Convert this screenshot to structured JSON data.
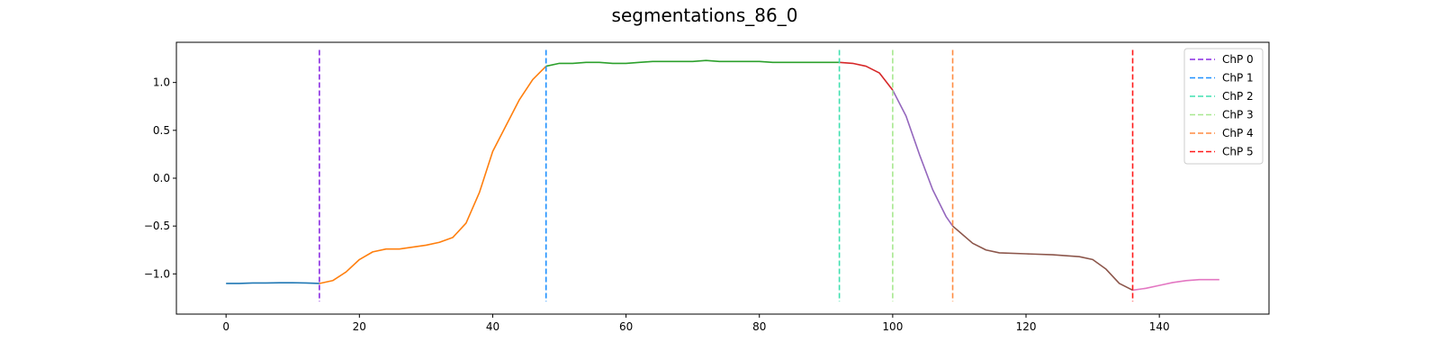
{
  "chart_data": {
    "type": "line",
    "title": "segmentations_86_0",
    "xlabel": "",
    "ylabel": "",
    "xlim": [
      -7.45,
      156.45
    ],
    "ylim": [
      -1.42,
      1.42
    ],
    "x_ticks": [
      0,
      20,
      40,
      60,
      80,
      100,
      120,
      140
    ],
    "y_ticks": [
      -1.0,
      -0.5,
      0.0,
      0.5,
      1.0
    ],
    "y_tick_labels": [
      "−1.0",
      "−0.5",
      "0.0",
      "0.5",
      "1.0"
    ],
    "grid": false,
    "legend_position": "top-right",
    "series": [
      {
        "color": "#1f77b4",
        "points": [
          [
            0,
            -1.1
          ],
          [
            2,
            -1.1
          ],
          [
            4,
            -1.095
          ],
          [
            6,
            -1.095
          ],
          [
            8,
            -1.093
          ],
          [
            10,
            -1.092
          ],
          [
            12,
            -1.095
          ],
          [
            14,
            -1.1
          ]
        ]
      },
      {
        "color": "#ff7f0e",
        "points": [
          [
            14,
            -1.1
          ],
          [
            16,
            -1.07
          ],
          [
            18,
            -0.98
          ],
          [
            20,
            -0.85
          ],
          [
            22,
            -0.77
          ],
          [
            24,
            -0.74
          ],
          [
            26,
            -0.74
          ],
          [
            28,
            -0.72
          ],
          [
            30,
            -0.7
          ],
          [
            32,
            -0.67
          ],
          [
            34,
            -0.62
          ],
          [
            36,
            -0.47
          ],
          [
            38,
            -0.15
          ],
          [
            40,
            0.28
          ],
          [
            42,
            0.55
          ],
          [
            44,
            0.82
          ],
          [
            46,
            1.03
          ],
          [
            48,
            1.17
          ]
        ]
      },
      {
        "color": "#2ca02c",
        "points": [
          [
            48,
            1.17
          ],
          [
            50,
            1.2
          ],
          [
            52,
            1.2
          ],
          [
            54,
            1.21
          ],
          [
            56,
            1.21
          ],
          [
            58,
            1.2
          ],
          [
            60,
            1.2
          ],
          [
            62,
            1.21
          ],
          [
            64,
            1.22
          ],
          [
            66,
            1.22
          ],
          [
            68,
            1.22
          ],
          [
            70,
            1.22
          ],
          [
            72,
            1.23
          ],
          [
            74,
            1.22
          ],
          [
            76,
            1.22
          ],
          [
            78,
            1.22
          ],
          [
            80,
            1.22
          ],
          [
            82,
            1.21
          ],
          [
            84,
            1.21
          ],
          [
            86,
            1.21
          ],
          [
            88,
            1.21
          ],
          [
            90,
            1.21
          ],
          [
            92,
            1.21
          ]
        ]
      },
      {
        "color": "#d62728",
        "points": [
          [
            92,
            1.21
          ],
          [
            94,
            1.2
          ],
          [
            96,
            1.17
          ],
          [
            98,
            1.1
          ],
          [
            100,
            0.92
          ]
        ]
      },
      {
        "color": "#9467bd",
        "points": [
          [
            100,
            0.92
          ],
          [
            102,
            0.65
          ],
          [
            104,
            0.25
          ],
          [
            106,
            -0.12
          ],
          [
            108,
            -0.4
          ],
          [
            109,
            -0.5
          ]
        ]
      },
      {
        "color": "#8c564b",
        "points": [
          [
            109,
            -0.5
          ],
          [
            112,
            -0.68
          ],
          [
            114,
            -0.75
          ],
          [
            116,
            -0.78
          ],
          [
            120,
            -0.79
          ],
          [
            124,
            -0.8
          ],
          [
            128,
            -0.82
          ],
          [
            130,
            -0.85
          ],
          [
            132,
            -0.95
          ],
          [
            134,
            -1.1
          ],
          [
            136,
            -1.17
          ]
        ]
      },
      {
        "color": "#e377c2",
        "points": [
          [
            136,
            -1.17
          ],
          [
            138,
            -1.15
          ],
          [
            140,
            -1.12
          ],
          [
            142,
            -1.09
          ],
          [
            144,
            -1.07
          ],
          [
            146,
            -1.06
          ],
          [
            148,
            -1.06
          ],
          [
            149,
            -1.06
          ]
        ]
      }
    ],
    "changepoints": [
      {
        "name": "ChP 0",
        "x": 14,
        "color": "#8a2be2"
      },
      {
        "name": "ChP 1",
        "x": 48,
        "color": "#1e90ff"
      },
      {
        "name": "ChP 2",
        "x": 92,
        "color": "#40e0b0"
      },
      {
        "name": "ChP 3",
        "x": 100,
        "color": "#a8e890"
      },
      {
        "name": "ChP 4",
        "x": 109,
        "color": "#ff8c42"
      },
      {
        "name": "ChP 5",
        "x": 136,
        "color": "#ff1a1a"
      }
    ]
  }
}
